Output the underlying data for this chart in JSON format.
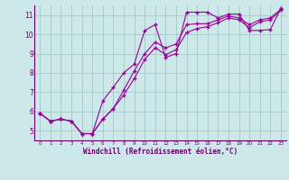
{
  "xlabel": "Windchill (Refroidissement éolien,°C)",
  "bg_color": "#cce8e8",
  "grid_color": "#aacccc",
  "line_color": "#990099",
  "xlim": [
    -0.5,
    23.5
  ],
  "ylim": [
    4.5,
    11.5
  ],
  "xticks": [
    0,
    1,
    2,
    3,
    4,
    5,
    6,
    7,
    8,
    9,
    10,
    11,
    12,
    13,
    14,
    15,
    16,
    17,
    18,
    19,
    20,
    21,
    22,
    23
  ],
  "yticks": [
    5,
    6,
    7,
    8,
    9,
    10,
    11
  ],
  "line1_x": [
    0,
    1,
    2,
    3,
    4,
    5,
    6,
    7,
    8,
    9,
    10,
    11,
    12,
    13,
    14,
    15,
    16,
    17,
    18,
    19,
    20,
    21,
    22,
    23
  ],
  "line1_y": [
    5.9,
    5.5,
    5.6,
    5.5,
    4.85,
    4.85,
    6.55,
    7.25,
    8.0,
    8.45,
    10.2,
    10.5,
    8.8,
    9.0,
    11.15,
    11.15,
    11.15,
    10.85,
    11.05,
    11.05,
    10.2,
    10.2,
    10.25,
    11.35
  ],
  "line2_x": [
    0,
    1,
    2,
    3,
    4,
    5,
    6,
    7,
    8,
    9,
    10,
    11,
    12,
    13,
    14,
    15,
    16,
    17,
    18,
    19,
    20,
    21,
    22,
    23
  ],
  "line2_y": [
    5.9,
    5.5,
    5.6,
    5.5,
    4.85,
    4.85,
    5.6,
    6.15,
    7.1,
    8.1,
    9.0,
    9.6,
    9.3,
    9.5,
    10.5,
    10.55,
    10.55,
    10.75,
    10.95,
    10.85,
    10.5,
    10.75,
    10.85,
    11.3
  ],
  "line3_x": [
    0,
    1,
    2,
    3,
    4,
    5,
    6,
    7,
    8,
    9,
    10,
    11,
    12,
    13,
    14,
    15,
    16,
    17,
    18,
    19,
    20,
    21,
    22,
    23
  ],
  "line3_y": [
    5.9,
    5.5,
    5.6,
    5.5,
    4.85,
    4.85,
    5.6,
    6.15,
    6.85,
    7.7,
    8.7,
    9.3,
    8.95,
    9.2,
    10.1,
    10.3,
    10.4,
    10.6,
    10.85,
    10.75,
    10.35,
    10.65,
    10.75,
    11.25
  ]
}
